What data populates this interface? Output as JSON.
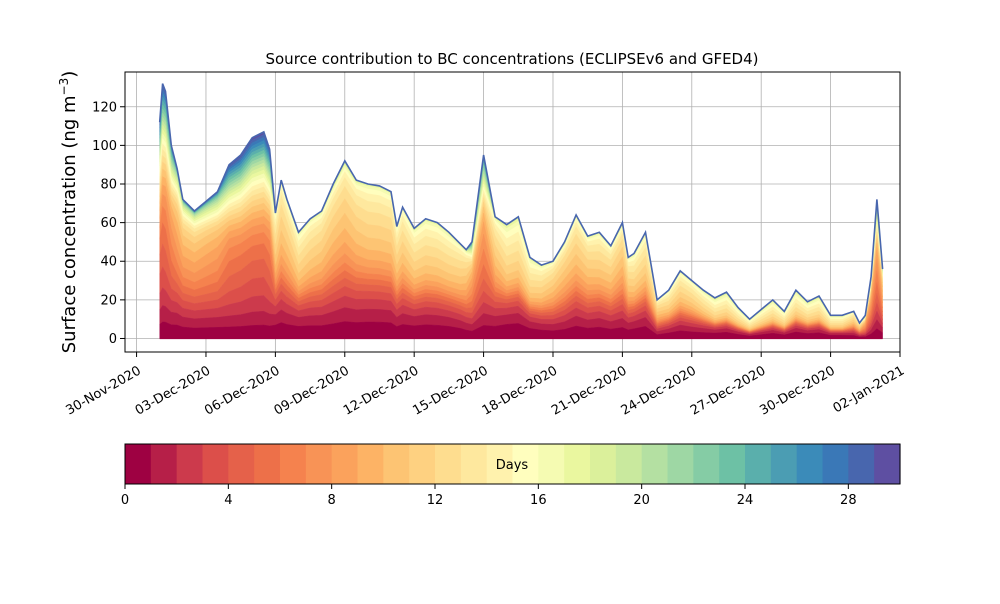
{
  "chart_data": {
    "type": "area",
    "title": "Source contribution to BC concentrations (ECLIPSEv6 and GFED4)",
    "ylabel_main": "Surface concentration (ng m",
    "ylabel_sup": "−3",
    "ylabel_close": ")",
    "xlabel": "",
    "ylim": [
      -7,
      138
    ],
    "yticks": [
      0,
      20,
      40,
      60,
      80,
      100,
      120
    ],
    "xlim": [
      "2020-11-29T12:00",
      "2021-01-02T00:00"
    ],
    "xticks": [
      "2020-11-30",
      "2020-12-03",
      "2020-12-06",
      "2020-12-09",
      "2020-12-12",
      "2020-12-15",
      "2020-12-18",
      "2020-12-21",
      "2020-12-24",
      "2020-12-27",
      "2020-12-30",
      "2021-01-02"
    ],
    "xtick_labels": [
      "30-Nov-2020",
      "03-Dec-2020",
      "06-Dec-2020",
      "09-Dec-2020",
      "12-Dec-2020",
      "15-Dec-2020",
      "18-Dec-2020",
      "21-Dec-2020",
      "24-Dec-2020",
      "27-Dec-2020",
      "30-Dec-2020",
      "02-Jan-2021"
    ],
    "grid": true,
    "stacked": true,
    "n_layers": 30,
    "x": [
      "2020-12-01T00:00",
      "2020-12-01T03:00",
      "2020-12-01T06:00",
      "2020-12-01T12:00",
      "2020-12-01T18:00",
      "2020-12-02T00:00",
      "2020-12-02T12:00",
      "2020-12-03T00:00",
      "2020-12-03T12:00",
      "2020-12-04T00:00",
      "2020-12-04T12:00",
      "2020-12-05T00:00",
      "2020-12-05T12:00",
      "2020-12-05T18:00",
      "2020-12-06T00:00",
      "2020-12-06T06:00",
      "2020-12-06T12:00",
      "2020-12-07T00:00",
      "2020-12-07T12:00",
      "2020-12-08T00:00",
      "2020-12-08T12:00",
      "2020-12-09T00:00",
      "2020-12-09T12:00",
      "2020-12-10T00:00",
      "2020-12-10T12:00",
      "2020-12-11T00:00",
      "2020-12-11T06:00",
      "2020-12-11T12:00",
      "2020-12-12T00:00",
      "2020-12-12T12:00",
      "2020-12-13T00:00",
      "2020-12-13T12:00",
      "2020-12-14T00:00",
      "2020-12-14T06:00",
      "2020-12-14T12:00",
      "2020-12-15T00:00",
      "2020-12-15T12:00",
      "2020-12-16T00:00",
      "2020-12-16T12:00",
      "2020-12-17T00:00",
      "2020-12-17T12:00",
      "2020-12-18T00:00",
      "2020-12-18T12:00",
      "2020-12-19T00:00",
      "2020-12-19T12:00",
      "2020-12-20T00:00",
      "2020-12-20T12:00",
      "2020-12-21T00:00",
      "2020-12-21T06:00",
      "2020-12-21T12:00",
      "2020-12-22T00:00",
      "2020-12-22T12:00",
      "2020-12-23T00:00",
      "2020-12-23T12:00",
      "2020-12-24T00:00",
      "2020-12-24T12:00",
      "2020-12-25T00:00",
      "2020-12-25T12:00",
      "2020-12-26T00:00",
      "2020-12-26T12:00",
      "2020-12-27T00:00",
      "2020-12-27T12:00",
      "2020-12-28T00:00",
      "2020-12-28T12:00",
      "2020-12-29T00:00",
      "2020-12-29T12:00",
      "2020-12-30T00:00",
      "2020-12-30T12:00",
      "2020-12-31T00:00",
      "2020-12-31T06:00",
      "2020-12-31T12:00",
      "2020-12-31T18:00",
      "2021-01-01T00:00",
      "2021-01-01T06:00"
    ],
    "total": [
      112,
      132,
      128,
      100,
      88,
      72,
      66,
      71,
      76,
      90,
      95,
      104,
      107,
      98,
      65,
      82,
      72,
      55,
      62,
      66,
      80,
      92,
      82,
      80,
      79,
      76,
      58,
      68,
      57,
      62,
      60,
      55,
      49,
      46,
      50,
      95,
      63,
      59,
      63,
      42,
      38,
      40,
      50,
      64,
      53,
      55,
      48,
      60,
      42,
      44,
      55,
      20,
      25,
      35,
      30,
      25,
      21,
      24,
      16,
      10,
      15,
      20,
      14,
      25,
      19,
      22,
      12,
      12,
      14,
      8,
      12,
      32,
      72,
      36
    ],
    "fresh_share": [
      0.95,
      0.9,
      0.85,
      0.7,
      0.55,
      0.5,
      0.5,
      0.55,
      0.6,
      0.85,
      0.9,
      0.95,
      0.95,
      0.85,
      0.25,
      0.3,
      0.3,
      0.2,
      0.25,
      0.3,
      0.35,
      0.35,
      0.3,
      0.25,
      0.25,
      0.25,
      0.25,
      0.25,
      0.2,
      0.2,
      0.2,
      0.2,
      0.25,
      0.35,
      0.6,
      0.7,
      0.3,
      0.15,
      0.15,
      0.15,
      0.2,
      0.3,
      0.35,
      0.3,
      0.3,
      0.25,
      0.3,
      0.35,
      0.25,
      0.2,
      0.2,
      0.3,
      0.2,
      0.2,
      0.2,
      0.15,
      0.1,
      0.1,
      0.1,
      0.1,
      0.1,
      0.1,
      0.1,
      0.1,
      0.1,
      0.1,
      0.1,
      0.1,
      0.2,
      0.3,
      0.6,
      0.65,
      0.7,
      0.5
    ],
    "colorbar": {
      "label": "Days",
      "ticks": [
        0,
        4,
        8,
        12,
        16,
        20,
        24,
        28
      ],
      "range": [
        0,
        30
      ],
      "colors": [
        "#9e0142",
        "#b61f48",
        "#cc3a4c",
        "#dc4f4a",
        "#e5614a",
        "#ed7049",
        "#f5824e",
        "#f89356",
        "#fba25c",
        "#fdb365",
        "#fdc473",
        "#fed181",
        "#fedd8f",
        "#fee89e",
        "#fff2ad",
        "#fffebe",
        "#f5fbb2",
        "#eaf79f",
        "#dbf09b",
        "#c9e99e",
        "#b4e0a2",
        "#9ed7a4",
        "#85cca5",
        "#6dc1a5",
        "#5aafac",
        "#4b9db3",
        "#3b8bb9",
        "#3a78b7",
        "#4866ae",
        "#5e4fa2"
      ]
    }
  }
}
